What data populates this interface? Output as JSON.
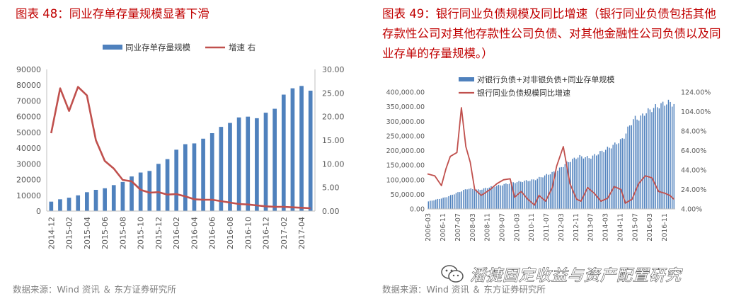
{
  "left": {
    "title": "图表 48：同业存单存量规模显著下滑",
    "source": "数据来源：Wind 资讯 ＆ 东方证券研究所"
  },
  "right": {
    "title": "图表 49：银行同业负债规模及同比增速（银行同业负债包括其他存款性公司对其他存款性公司负债、对其他金融性公司负债以及同业存单的存量规模。）",
    "source": "数据来源：Wind 资讯 ＆ 东方证券研究所"
  },
  "watermark": {
    "text": "潘捷固定收益与资产配置研究",
    "icon": "wechat-icon"
  },
  "colors": {
    "bar": "#4f81bd",
    "line": "#c0504d",
    "title": "#c00000",
    "grid": "#d9d9d9",
    "axis_text": "#595959"
  },
  "chart_data": [
    {
      "type": "bar",
      "title": "图表 48：同业存单存量规模显著下滑",
      "categories": [
        "2014-12",
        "2015-01",
        "2015-02",
        "2015-03",
        "2015-04",
        "2015-05",
        "2015-06",
        "2015-07",
        "2015-08",
        "2015-09",
        "2015-10",
        "2015-11",
        "2015-12",
        "2016-01",
        "2016-02",
        "2016-03",
        "2016-04",
        "2016-05",
        "2016-06",
        "2016-07",
        "2016-08",
        "2016-09",
        "2016-10",
        "2016-11",
        "2016-12",
        "2017-01",
        "2017-02",
        "2017-03",
        "2017-04",
        "2017-05"
      ],
      "tick_labels": [
        "2014-12",
        "2015-02",
        "2015-04",
        "2015-06",
        "2015-08",
        "2015-10",
        "2015-12",
        "2016-02",
        "2016-04",
        "2016-06",
        "2016-08",
        "2016-10",
        "2016-12",
        "2017-02",
        "2017-04"
      ],
      "series": [
        {
          "name": "同业存单存量规模",
          "type": "bar",
          "axis": "left",
          "values": [
            6000,
            7500,
            8500,
            10000,
            12000,
            13500,
            14500,
            16500,
            18500,
            22000,
            24500,
            25500,
            30000,
            33000,
            39000,
            42500,
            43000,
            46000,
            49500,
            53500,
            56000,
            59500,
            60000,
            59000,
            62500,
            65000,
            74000,
            78000,
            79500,
            76500
          ]
        },
        {
          "name": "增速 右",
          "type": "line",
          "axis": "right",
          "values": [
            16.5,
            26.0,
            21.2,
            26.3,
            24.5,
            15.0,
            10.6,
            9.0,
            6.6,
            6.3,
            4.5,
            3.9,
            4.0,
            3.5,
            3.6,
            3.1,
            2.5,
            2.4,
            2.4,
            2.1,
            1.8,
            1.5,
            1.4,
            1.2,
            1.0,
            0.9,
            0.9,
            0.8,
            0.7,
            0.6
          ]
        }
      ],
      "y_left": {
        "min": 0,
        "max": 90000,
        "ticks": [
          "0",
          "10000",
          "20000",
          "30000",
          "40000",
          "50000",
          "60000",
          "70000",
          "80000",
          "90000"
        ]
      },
      "y_right": {
        "min": 0,
        "max": 30,
        "ticks": [
          "0.00",
          "5.00",
          "10.00",
          "15.00",
          "20.00",
          "25.00",
          "30.00"
        ]
      },
      "legend": [
        "同业存单存量规模",
        "增速 右"
      ],
      "legend_position": "top"
    },
    {
      "type": "bar",
      "title": "图表 49：银行同业负债规模及同比增速",
      "tick_labels": [
        "2006-03",
        "2006-11",
        "2007-07",
        "2008-03",
        "2008-11",
        "2009-07",
        "2010-03",
        "2010-11",
        "2011-07",
        "2012-03",
        "2012-11",
        "2013-07",
        "2014-03",
        "2014-11",
        "2015-07",
        "2016-03",
        "2016-11"
      ],
      "x_range": [
        "2006-03",
        "2017-04"
      ],
      "series": [
        {
          "name": "对银行负债+对非银负债+同业存单规模",
          "type": "bar",
          "axis": "left",
          "x": [
            2006.17,
            2007.0,
            2008.0,
            2008.5,
            2009.0,
            2009.5,
            2010.0,
            2010.5,
            2011.0,
            2011.5,
            2012.0,
            2012.5,
            2013.0,
            2013.5,
            2014.0,
            2014.5,
            2015.0,
            2015.25,
            2015.5,
            2015.75,
            2016.0,
            2016.5,
            2017.0,
            2017.25
          ],
          "values": [
            25000,
            40000,
            70000,
            65000,
            75000,
            82000,
            90000,
            95000,
            100000,
            115000,
            130000,
            160000,
            180000,
            175000,
            195000,
            215000,
            240000,
            280000,
            310000,
            310000,
            330000,
            350000,
            365000,
            360000
          ]
        },
        {
          "name": "银行同业负债规模同比增速",
          "type": "line",
          "axis": "right",
          "x": [
            2006.17,
            2006.5,
            2006.8,
            2007.0,
            2007.2,
            2007.5,
            2007.7,
            2007.9,
            2008.1,
            2008.3,
            2008.6,
            2009.0,
            2009.3,
            2009.6,
            2009.9,
            2010.1,
            2010.4,
            2010.7,
            2011.0,
            2011.2,
            2011.5,
            2011.8,
            2012.0,
            2012.3,
            2012.6,
            2012.9,
            2013.1,
            2013.4,
            2013.7,
            2014.0,
            2014.3,
            2014.6,
            2014.9,
            2015.1,
            2015.4,
            2015.7,
            2016.0,
            2016.3,
            2016.6,
            2016.9,
            2017.1,
            2017.3
          ],
          "values": [
            40,
            38,
            28,
            45,
            58,
            62,
            108,
            68,
            52,
            24,
            18,
            24,
            30,
            34,
            35,
            16,
            22,
            14,
            8,
            18,
            12,
            26,
            48,
            68,
            30,
            14,
            12,
            26,
            20,
            12,
            15,
            27,
            24,
            10,
            14,
            30,
            38,
            36,
            22,
            20,
            18,
            14
          ]
        }
      ],
      "y_left": {
        "min": 0,
        "max": 400000,
        "ticks": [
          "0.00",
          "50,000.00",
          "100,000.00",
          "150,000.00",
          "200,000.00",
          "250,000.00",
          "300,000.00",
          "350,000.00",
          "400,000.00"
        ]
      },
      "y_right": {
        "min": 4,
        "max": 124,
        "ticks": [
          "4.00%",
          "24.00%",
          "44.00%",
          "64.00%",
          "84.00%",
          "104.00%",
          "124.00%"
        ]
      },
      "legend": [
        "对银行负债+对非银负债+同业存单规模",
        "银行同业负债规模同比增速"
      ],
      "legend_position": "top-left"
    }
  ]
}
